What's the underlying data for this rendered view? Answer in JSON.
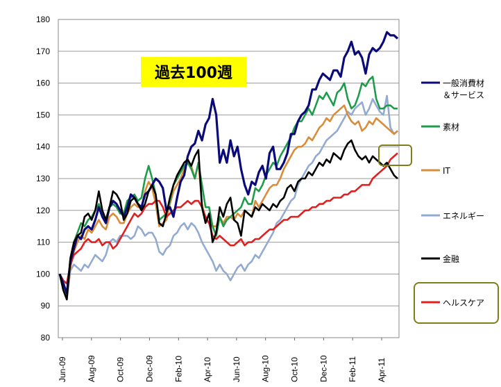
{
  "chart_data": {
    "type": "line",
    "title": "",
    "xlabel": "",
    "ylabel": "",
    "ylim": [
      80,
      180
    ],
    "yticks": [
      80,
      90,
      100,
      110,
      120,
      130,
      140,
      150,
      160,
      170,
      180
    ],
    "xtick_labels": [
      "Jun-09",
      "Aug-09",
      "Oct-09",
      "Dec-09",
      "Feb-10",
      "Apr-10",
      "Jun-10",
      "Aug-10",
      "Oct-10",
      "Dec-10",
      "Feb-11",
      "Apr-11"
    ],
    "annotation": "過去100週",
    "legend_position": "right",
    "series": [
      {
        "name": "一般消費材\n＆サービス",
        "color": "#0a0a78",
        "values": [
          100,
          97,
          94,
          104,
          108,
          112,
          111,
          114,
          115,
          114,
          117,
          121,
          118,
          116,
          121,
          123,
          122,
          120,
          118,
          121,
          125,
          124,
          122,
          121,
          125,
          126,
          128,
          130,
          129,
          127,
          120,
          121,
          118,
          124,
          129,
          131,
          137,
          140,
          141,
          145,
          142,
          147,
          149,
          155,
          150,
          135,
          139,
          135,
          142,
          137,
          140,
          133,
          128,
          125,
          129,
          128,
          132,
          134,
          130,
          138,
          140,
          133,
          133,
          135,
          138,
          144,
          144,
          148,
          150,
          151,
          153,
          158,
          158,
          161,
          163,
          162,
          161,
          164,
          164,
          162,
          168,
          170,
          173,
          169,
          170,
          168,
          163,
          169,
          171,
          170,
          171,
          173,
          176,
          175,
          175,
          174
        ]
      },
      {
        "name": "素材",
        "color": "#1e9b4b",
        "values": [
          100,
          98,
          93,
          104,
          110,
          113,
          116,
          115,
          117,
          118,
          120,
          122,
          119,
          117,
          121,
          122,
          121,
          119,
          119,
          123,
          124,
          125,
          123,
          124,
          130,
          134,
          130,
          125,
          117,
          118,
          119,
          123,
          128,
          130,
          132,
          134,
          135,
          133,
          130,
          135,
          128,
          121,
          121,
          115,
          112,
          118,
          115,
          117,
          118,
          119,
          120,
          121,
          124,
          122,
          122,
          127,
          126,
          128,
          131,
          133,
          135,
          134,
          137,
          139,
          141,
          143,
          146,
          148,
          148,
          150,
          152,
          150,
          153,
          156,
          155,
          157,
          155,
          153,
          157,
          158,
          160,
          155,
          152,
          153,
          156,
          160,
          159,
          161,
          162,
          155,
          152,
          152,
          153,
          153,
          152,
          152
        ]
      },
      {
        "name": "IT",
        "color": "#d98c3a",
        "values": [
          100,
          96,
          93,
          102,
          107,
          110,
          112,
          111,
          114,
          113,
          115,
          117,
          115,
          114,
          118,
          119,
          118,
          116,
          116,
          119,
          121,
          122,
          121,
          121,
          126,
          129,
          127,
          122,
          115,
          116,
          117,
          122,
          126,
          128,
          130,
          133,
          135,
          134,
          130,
          135,
          122,
          117,
          116,
          115,
          115,
          118,
          116,
          118,
          118,
          117,
          119,
          118,
          120,
          119,
          118,
          123,
          121,
          123,
          125,
          127,
          128,
          128,
          130,
          133,
          135,
          137,
          139,
          140,
          140,
          141,
          143,
          142,
          144,
          146,
          147,
          149,
          148,
          150,
          151,
          152,
          153,
          150,
          148,
          147,
          148,
          145,
          146,
          148,
          147,
          149,
          148,
          147,
          146,
          145,
          144,
          145
        ]
      },
      {
        "name": "エネルギー",
        "color": "#93abd1",
        "values": [
          100,
          96,
          92,
          101,
          103,
          102,
          101,
          103,
          102,
          104,
          106,
          105,
          104,
          106,
          110,
          111,
          110,
          112,
          112,
          112,
          111,
          112,
          115,
          114,
          112,
          113,
          113,
          111,
          107,
          106,
          108,
          109,
          112,
          113,
          115,
          116,
          114,
          116,
          115,
          113,
          110,
          108,
          106,
          104,
          101,
          103,
          101,
          100,
          98,
          100,
          102,
          103,
          101,
          103,
          104,
          106,
          105,
          107,
          109,
          111,
          113,
          116,
          117,
          119,
          121,
          123,
          124,
          128,
          130,
          132,
          134,
          135,
          137,
          138,
          140,
          142,
          143,
          144,
          145,
          147,
          149,
          151,
          150,
          152,
          153,
          154,
          150,
          152,
          155,
          153,
          151,
          150,
          156,
          146,
          144,
          145
        ]
      },
      {
        "name": "金融",
        "color": "#000000",
        "values": [
          100,
          95,
          92,
          105,
          110,
          112,
          113,
          118,
          119,
          117,
          120,
          126,
          120,
          117,
          121,
          126,
          125,
          123,
          117,
          119,
          123,
          124,
          122,
          120,
          122,
          126,
          128,
          125,
          116,
          115,
          119,
          124,
          128,
          131,
          133,
          135,
          136,
          134,
          137,
          139,
          121,
          116,
          119,
          110,
          113,
          121,
          118,
          122,
          124,
          117,
          116,
          112,
          120,
          119,
          118,
          121,
          120,
          122,
          121,
          120,
          122,
          121,
          123,
          124,
          127,
          128,
          126,
          129,
          130,
          130,
          132,
          131,
          133,
          135,
          134,
          136,
          135,
          138,
          137,
          136,
          139,
          141,
          142,
          139,
          137,
          136,
          137,
          135,
          137,
          136,
          135,
          134,
          135,
          133,
          131,
          130
        ]
      },
      {
        "name": "ヘルスケア",
        "color": "#e02020",
        "values": [
          100,
          98,
          97,
          103,
          106,
          107,
          108,
          110,
          111,
          110,
          110,
          111,
          109,
          110,
          110,
          108,
          109,
          111,
          113,
          115,
          117,
          119,
          118,
          119,
          121,
          122,
          122,
          123,
          123,
          121,
          118,
          119,
          120,
          121,
          121,
          122,
          123,
          122,
          123,
          123,
          121,
          118,
          116,
          112,
          111,
          112,
          111,
          110,
          109,
          109,
          110,
          111,
          109,
          110,
          110,
          111,
          111,
          112,
          113,
          114,
          114,
          115,
          116,
          117,
          117,
          118,
          118,
          118,
          119,
          120,
          120,
          121,
          121,
          122,
          122,
          123,
          123,
          124,
          124,
          124,
          125,
          125,
          126,
          126,
          127,
          128,
          128,
          128,
          130,
          131,
          132,
          133,
          134,
          136,
          137,
          138
        ]
      }
    ]
  }
}
